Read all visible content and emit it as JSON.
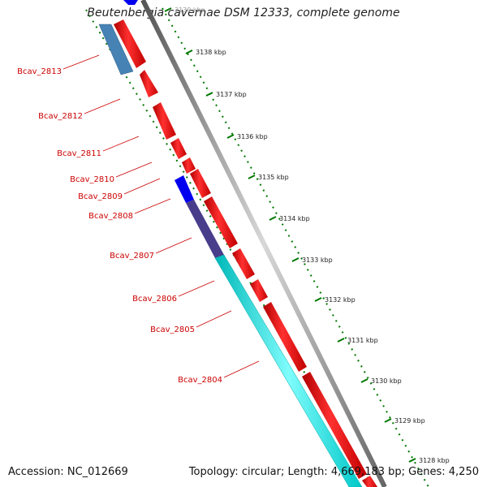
{
  "title": "Beutenbergia cavernae DSM 12333, complete genome",
  "accession_label": "Accession:",
  "accession": "NC_012669",
  "topology_label": "Topology:",
  "topology": "circular",
  "length_label": "Length:",
  "length": "4,669,183 bp",
  "genes_label": "Genes:",
  "genes": "4,250",
  "colors": {
    "forward_cds": "#ff0000",
    "reverse_cds_blue": "#0000ee",
    "steel_gene": "#4682b4",
    "slate_gene": "#483d8b",
    "cyan_gene": "#00eeee",
    "backbone": "#888888",
    "tick": "#007700",
    "label": "#cc0000"
  },
  "scale_ticks": [
    "3139 kbp",
    "3138 kbp",
    "3137 kbp",
    "3136 kbp",
    "3135 kbp",
    "3134 kbp",
    "3133 kbp",
    "3132 kbp",
    "3131 kbp",
    "3130 kbp",
    "3129 kbp",
    "3128 kbp"
  ],
  "gene_labels": [
    "Bcav_2813",
    "Bcav_2812",
    "Bcav_2811",
    "Bcav_2810",
    "Bcav_2809",
    "Bcav_2808",
    "Bcav_2807",
    "Bcav_2806",
    "Bcav_2805",
    "Bcav_2804"
  ]
}
